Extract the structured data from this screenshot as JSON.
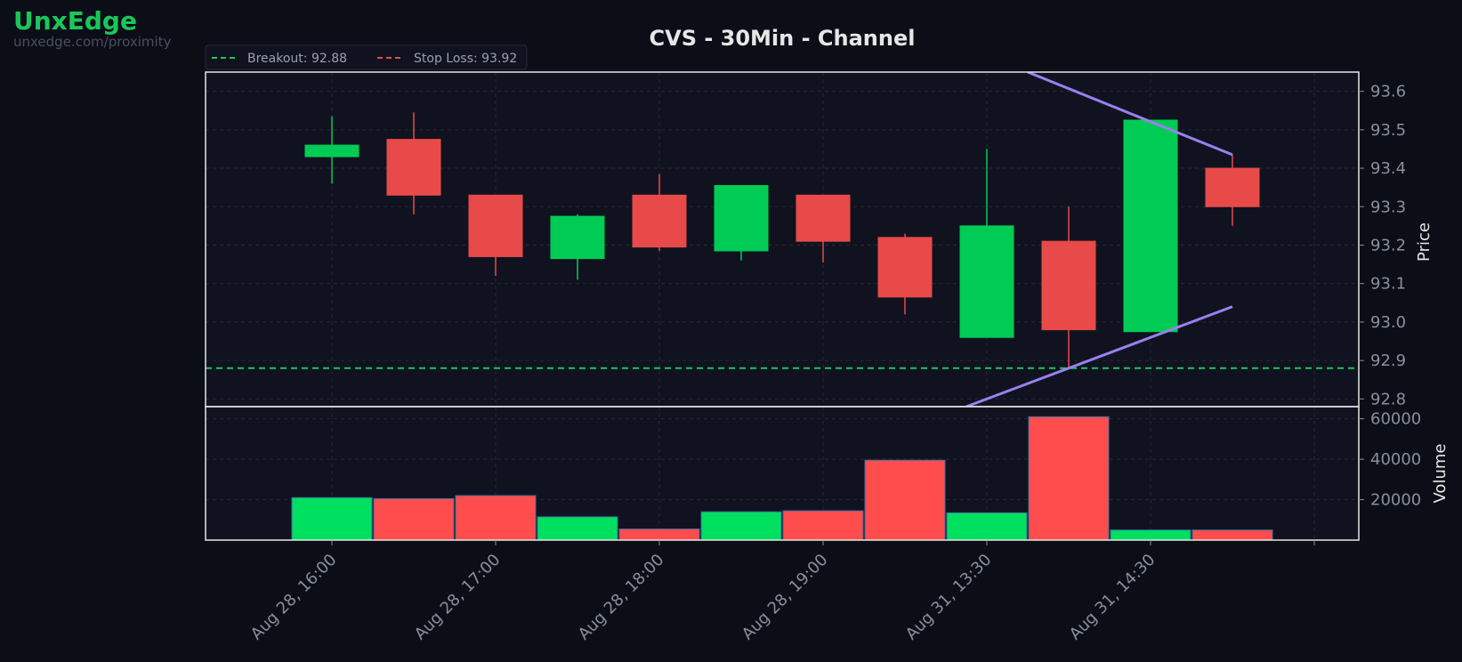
{
  "brand": {
    "name": "UnxEdge",
    "url": "unxedge.com/proximity"
  },
  "chart_data": {
    "type": "candlestick",
    "title": "CVS - 30Min - Channel",
    "ylabel": "Price",
    "volume_label": "Volume",
    "ylim": [
      92.78,
      93.65
    ],
    "volume_ylim": [
      0,
      66000
    ],
    "price_ticks": [
      "93.6",
      "93.5",
      "93.4",
      "93.3",
      "93.2",
      "93.1",
      "93.0",
      "92.9",
      "92.8"
    ],
    "volume_ticks": [
      "60000",
      "40000",
      "20000"
    ],
    "x_tick_labels": [
      "Aug 28, 16:00",
      "Aug 28, 17:00",
      "Aug 28, 18:00",
      "Aug 28, 19:00",
      "Aug 31, 13:30",
      "Aug 31, 14:30"
    ],
    "candles": [
      {
        "open": 93.43,
        "high": 93.535,
        "low": 93.36,
        "close": 93.46,
        "volume": 21000
      },
      {
        "open": 93.475,
        "high": 93.545,
        "low": 93.28,
        "close": 93.33,
        "volume": 20500
      },
      {
        "open": 93.33,
        "high": 93.33,
        "low": 93.12,
        "close": 93.17,
        "volume": 22000
      },
      {
        "open": 93.165,
        "high": 93.28,
        "low": 93.11,
        "close": 93.275,
        "volume": 11500
      },
      {
        "open": 93.33,
        "high": 93.385,
        "low": 93.185,
        "close": 93.195,
        "volume": 5500
      },
      {
        "open": 93.185,
        "high": 93.355,
        "low": 93.16,
        "close": 93.355,
        "volume": 14000
      },
      {
        "open": 93.33,
        "high": 93.33,
        "low": 93.155,
        "close": 93.21,
        "volume": 14500
      },
      {
        "open": 93.22,
        "high": 93.23,
        "low": 93.02,
        "close": 93.065,
        "volume": 39500
      },
      {
        "open": 92.96,
        "high": 93.45,
        "low": 92.96,
        "close": 93.25,
        "volume": 13500
      },
      {
        "open": 93.21,
        "high": 93.3,
        "low": 92.88,
        "close": 92.98,
        "volume": 61000
      },
      {
        "open": 92.975,
        "high": 93.525,
        "low": 92.975,
        "close": 93.525,
        "volume": 5000
      },
      {
        "open": 93.4,
        "high": 93.435,
        "low": 93.25,
        "close": 93.3,
        "volume": 5000
      }
    ],
    "breakout": {
      "label": "Breakout: 92.88",
      "value": 92.88,
      "color": "#19c75a"
    },
    "stop_loss": {
      "label": "Stop Loss: 93.92",
      "value": 93.92,
      "color": "#e84a4a"
    },
    "channel": {
      "upper": {
        "start_index": 8.5,
        "start_value": 93.65,
        "end_index": 11,
        "end_value": 93.435
      },
      "lower": {
        "start_index": 7.75,
        "start_value": 92.78,
        "end_index": 11,
        "end_value": 93.04
      },
      "color": "#9a80f0"
    },
    "colors": {
      "up": "#00cc55",
      "down": "#e84a4a",
      "volume_up": "#00e060",
      "volume_down": "#ff4d4d"
    },
    "grid": true,
    "legend_position": "top-left"
  }
}
